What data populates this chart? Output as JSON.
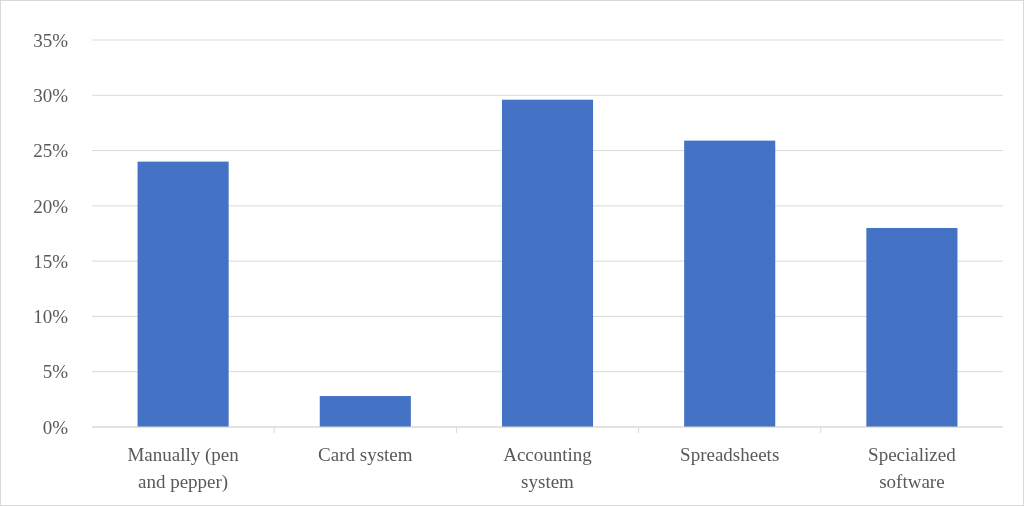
{
  "chart_data": {
    "type": "bar",
    "categories": [
      "Manually (pen and pepper)",
      "Card system",
      "Accounting system",
      "Spreadsheets",
      "Specialized software"
    ],
    "values": [
      24,
      2.8,
      29.6,
      25.9,
      18
    ],
    "color": "#4472c4",
    "ylim": [
      0,
      35
    ],
    "yticks": [
      {
        "value": 0,
        "label": "0%"
      },
      {
        "value": 5,
        "label": "5%"
      },
      {
        "value": 10,
        "label": "10%"
      },
      {
        "value": 15,
        "label": "15%"
      },
      {
        "value": 20,
        "label": "20%"
      },
      {
        "value": 25,
        "label": "25%"
      },
      {
        "value": 30,
        "label": "30%"
      },
      {
        "value": 35,
        "label": "35%"
      }
    ],
    "grid": "y"
  }
}
